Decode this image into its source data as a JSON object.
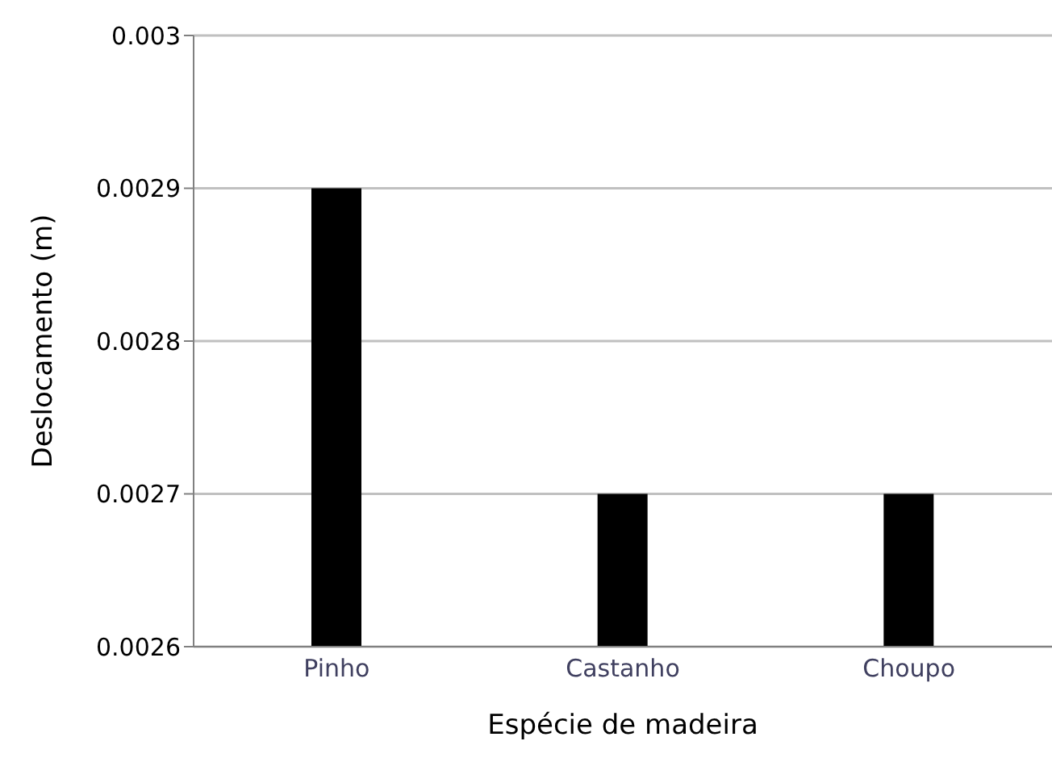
{
  "chart_data": {
    "type": "bar",
    "xlabel": "Espécie de madeira",
    "ylabel": "Deslocamento (m)",
    "categories": [
      "Pinho",
      "Castanho",
      "Choupo"
    ],
    "values": [
      0.0029,
      0.0027,
      0.0027
    ],
    "color": "#000000",
    "ylim": [
      0.0026,
      0.003
    ],
    "yticks": [
      0.0026,
      0.0027,
      0.0028,
      0.0029,
      0.003
    ],
    "grid": "y"
  }
}
